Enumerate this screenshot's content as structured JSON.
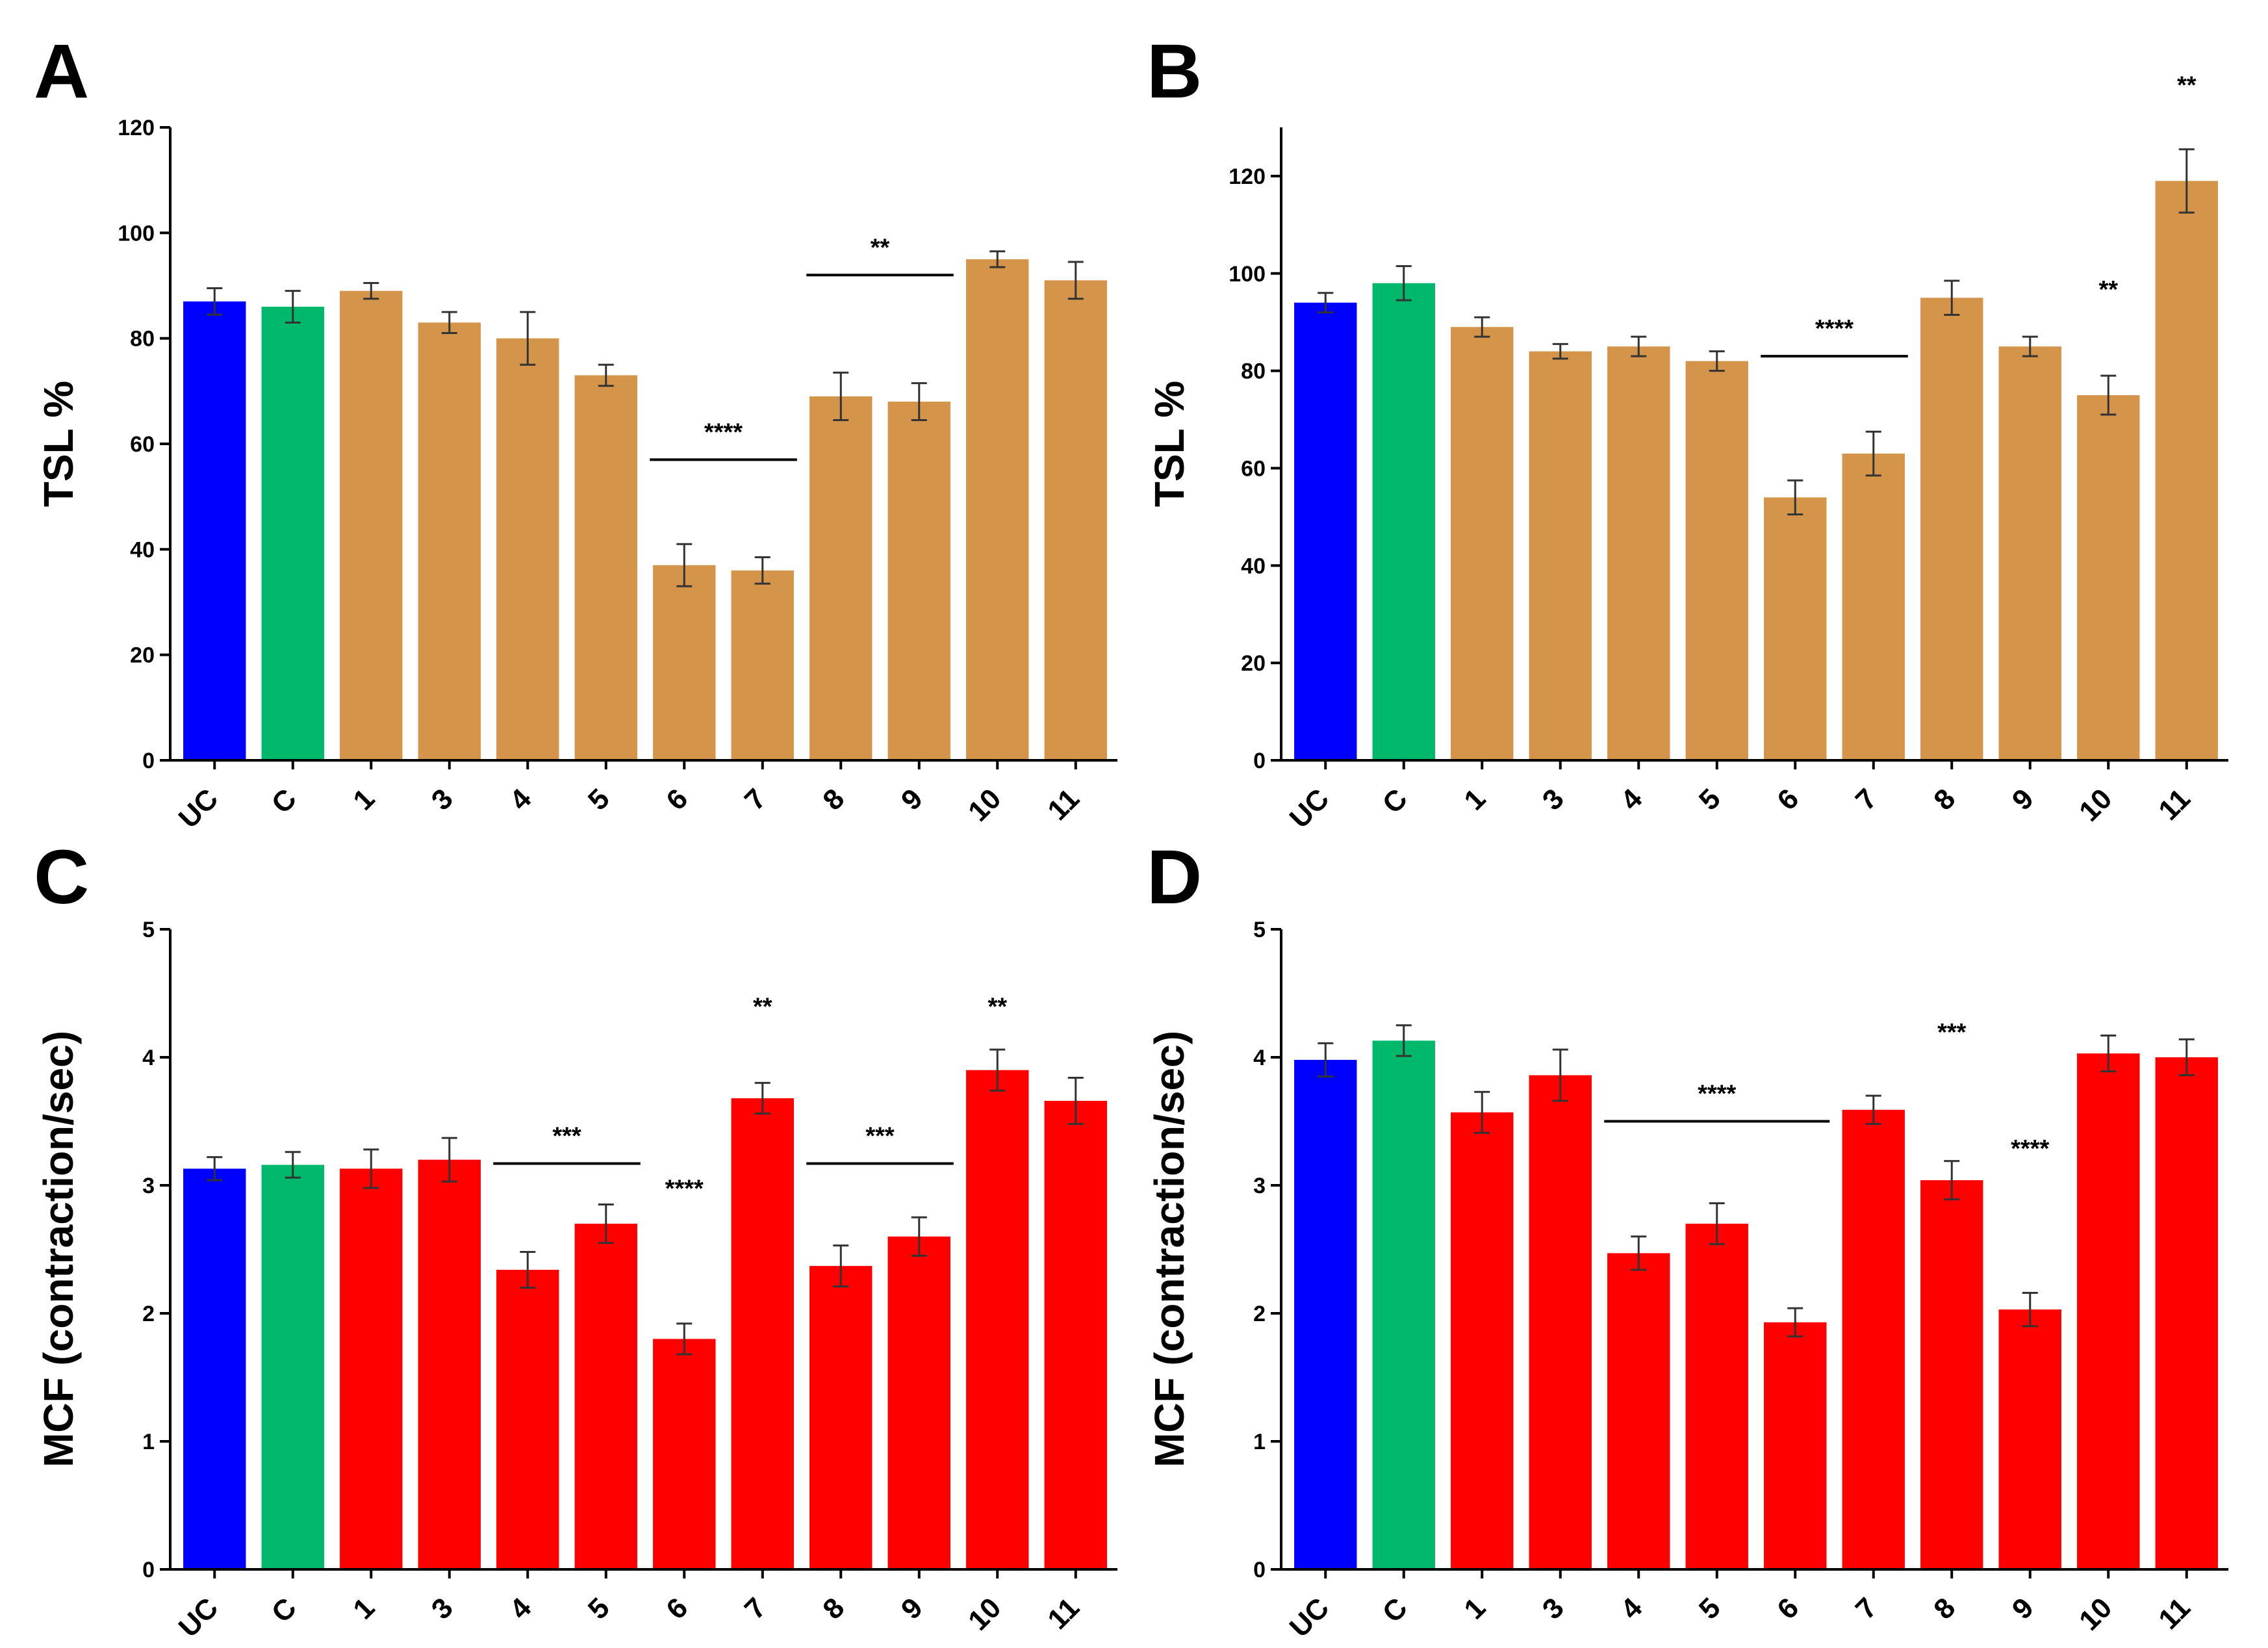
{
  "colors": {
    "uc": "#0000ff",
    "c": "#00b86b",
    "tsl_treatment": "#d4954a",
    "mcf_treatment": "#ff0000"
  },
  "chart_data": [
    {
      "panel": "A",
      "type": "bar",
      "ylabel": "TSL %",
      "ylim": [
        0,
        120
      ],
      "yticks": [
        0,
        20,
        40,
        60,
        80,
        100,
        120
      ],
      "categories": [
        "UC",
        "C",
        "1",
        "3",
        "4",
        "5",
        "6",
        "7",
        "8",
        "9",
        "10",
        "11"
      ],
      "values": [
        87,
        86,
        89,
        83,
        80,
        73,
        37,
        36,
        69,
        68,
        95,
        91
      ],
      "errors": [
        2.5,
        3,
        1.5,
        2,
        5,
        2,
        4,
        2.5,
        4.5,
        3.5,
        1.5,
        3.5
      ],
      "annotations": [
        {
          "text": "****",
          "from": "6",
          "to": "7",
          "y": 57,
          "line": true
        },
        {
          "text": "**",
          "from": "8",
          "to": "9",
          "y": 92,
          "line": true
        }
      ]
    },
    {
      "panel": "B",
      "type": "bar",
      "ylabel": "TSL %",
      "ylim": [
        0,
        130
      ],
      "yticks": [
        0,
        20,
        40,
        60,
        80,
        100,
        120
      ],
      "categories": [
        "UC",
        "C",
        "1",
        "3",
        "4",
        "5",
        "6",
        "7",
        "8",
        "9",
        "10",
        "11"
      ],
      "values": [
        94,
        98,
        89,
        84,
        85,
        82,
        54,
        63,
        95,
        85,
        75,
        119
      ],
      "errors": [
        2,
        3.5,
        2,
        1.5,
        2,
        2,
        3.5,
        4.5,
        3.5,
        2,
        4,
        6.5
      ],
      "annotations": [
        {
          "text": "****",
          "from": "6",
          "to": "7",
          "y": 83,
          "line": true
        },
        {
          "text": "**",
          "from": "10",
          "to": "10",
          "y": 91,
          "line": false
        },
        {
          "text": "**",
          "from": "11",
          "to": "11",
          "y": 133,
          "line": false
        }
      ]
    },
    {
      "panel": "C",
      "type": "bar",
      "ylabel": "MCF (contraction/sec)",
      "ylim": [
        0,
        5
      ],
      "yticks": [
        0,
        1,
        2,
        3,
        4,
        5
      ],
      "categories": [
        "UC",
        "C",
        "1",
        "3",
        "4",
        "5",
        "6",
        "7",
        "8",
        "9",
        "10",
        "11"
      ],
      "values": [
        3.13,
        3.16,
        3.13,
        3.2,
        2.34,
        2.7,
        1.8,
        3.68,
        2.37,
        2.6,
        3.9,
        3.66
      ],
      "errors": [
        0.09,
        0.1,
        0.15,
        0.17,
        0.14,
        0.15,
        0.12,
        0.12,
        0.16,
        0.15,
        0.16,
        0.18
      ],
      "annotations": [
        {
          "text": "***",
          "from": "4",
          "to": "5",
          "y": 3.17,
          "line": true
        },
        {
          "text": "****",
          "from": "6",
          "to": "6",
          "y": 2.76,
          "line": false
        },
        {
          "text": "**",
          "from": "7",
          "to": "7",
          "y": 4.18,
          "line": false
        },
        {
          "text": "***",
          "from": "8",
          "to": "9",
          "y": 3.17,
          "line": true
        },
        {
          "text": "**",
          "from": "10",
          "to": "10",
          "y": 4.18,
          "line": false
        }
      ]
    },
    {
      "panel": "D",
      "type": "bar",
      "ylabel": "MCF (contraction/sec)",
      "ylim": [
        0,
        5
      ],
      "yticks": [
        0,
        1,
        2,
        3,
        4,
        5
      ],
      "categories": [
        "UC",
        "C",
        "1",
        "3",
        "4",
        "5",
        "6",
        "7",
        "8",
        "9",
        "10",
        "11"
      ],
      "values": [
        3.98,
        4.13,
        3.57,
        3.86,
        2.47,
        2.7,
        1.93,
        3.59,
        3.04,
        2.03,
        4.03,
        4.0
      ],
      "errors": [
        0.13,
        0.12,
        0.16,
        0.2,
        0.13,
        0.16,
        0.11,
        0.11,
        0.15,
        0.13,
        0.14,
        0.14
      ],
      "annotations": [
        {
          "text": "****",
          "from": "4",
          "to": "6",
          "y": 3.5,
          "line": true
        },
        {
          "text": "***",
          "from": "8",
          "to": "8",
          "y": 3.98,
          "line": false
        },
        {
          "text": "****",
          "from": "9",
          "to": "9",
          "y": 3.07,
          "line": false
        }
      ]
    }
  ]
}
